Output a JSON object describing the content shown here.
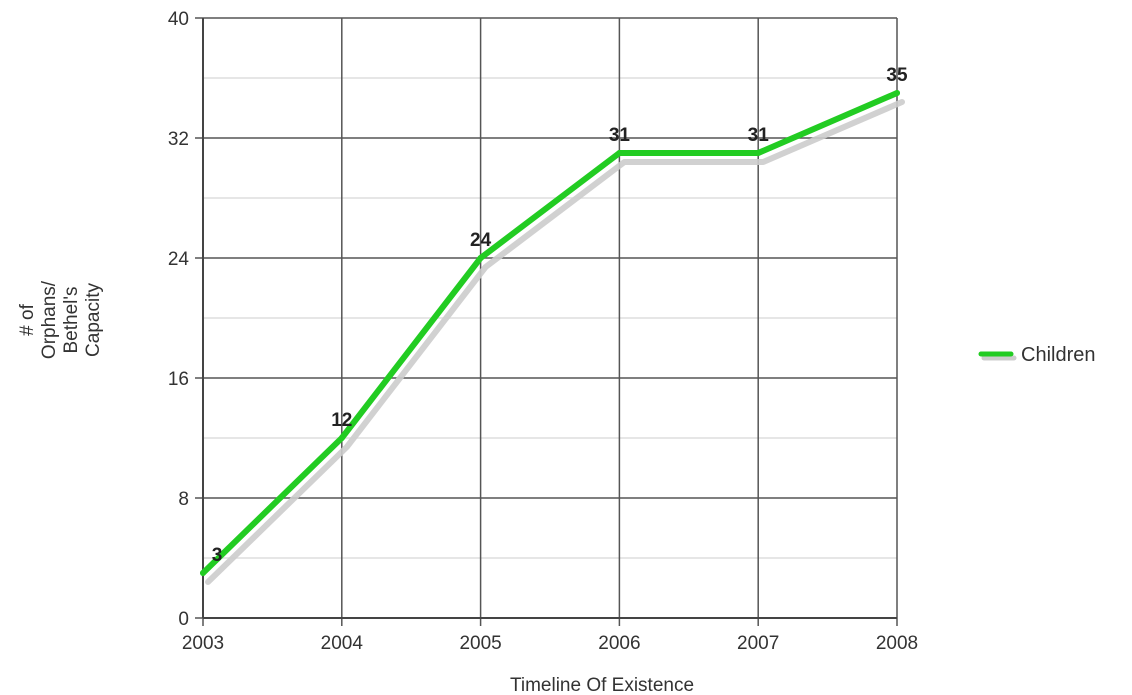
{
  "chart_data": {
    "type": "line",
    "title": "",
    "xlabel": "Timeline Of Existence",
    "ylabel_lines": [
      "# of",
      "Orphans/",
      "Bethel's",
      "Capacity"
    ],
    "categories": [
      "2003",
      "2004",
      "2005",
      "2006",
      "2007",
      "2008"
    ],
    "ylim": [
      0,
      40
    ],
    "yticks": [
      0,
      8,
      16,
      24,
      32,
      40
    ],
    "grid": true,
    "legend_position": "right",
    "series": [
      {
        "name": "Children",
        "values": [
          3,
          12,
          24,
          31,
          31,
          35
        ],
        "color": "#22cc22",
        "shadow_color": "#cccccc"
      }
    ]
  }
}
